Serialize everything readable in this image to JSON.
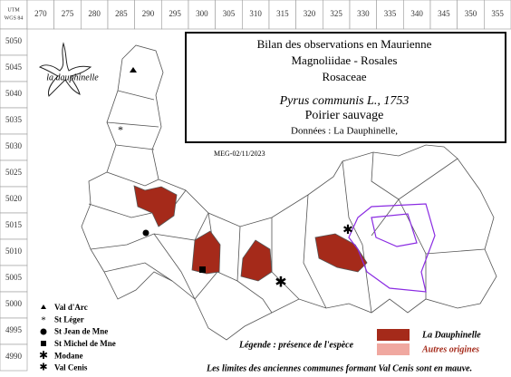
{
  "header": {
    "grid_system": "UTM",
    "datum": "WGS 84"
  },
  "grid": {
    "x_labels": [
      270,
      275,
      280,
      285,
      290,
      295,
      300,
      305,
      310,
      315,
      320,
      325,
      330,
      335,
      340,
      345,
      350,
      355
    ],
    "y_labels": [
      5050,
      5045,
      5040,
      5035,
      5030,
      5025,
      5020,
      5015,
      5010,
      5005,
      5000,
      4995,
      4990
    ]
  },
  "logo": {
    "label": "la dauphinelle"
  },
  "title_box": {
    "title": "Bilan des observations en Maurienne",
    "classification": "Magnoliidae - Rosales",
    "family": "Rosaceae",
    "species": "Pyrus communis L., 1753",
    "common_name": "Poirier sauvage",
    "source": "Données : La Dauphinelle,"
  },
  "date_stamp": "MEG-02/11/2023",
  "places": [
    {
      "label": "Val d'Arc"
    },
    {
      "label": "St Léger"
    },
    {
      "label": "St Jean de Mne"
    },
    {
      "label": "St Michel de Mne"
    },
    {
      "label": "Modane"
    },
    {
      "label": "Val Cenis"
    }
  ],
  "legend": {
    "title": "Légende : présence de l'espèce",
    "items": [
      {
        "label": "La Dauphinelle",
        "color": "#a52a1a"
      },
      {
        "label": "Autres origines",
        "color": "#f0a8a0"
      }
    ]
  },
  "footnote": "Les limites des anciennes communes formant Val Cenis sont en mauve."
}
